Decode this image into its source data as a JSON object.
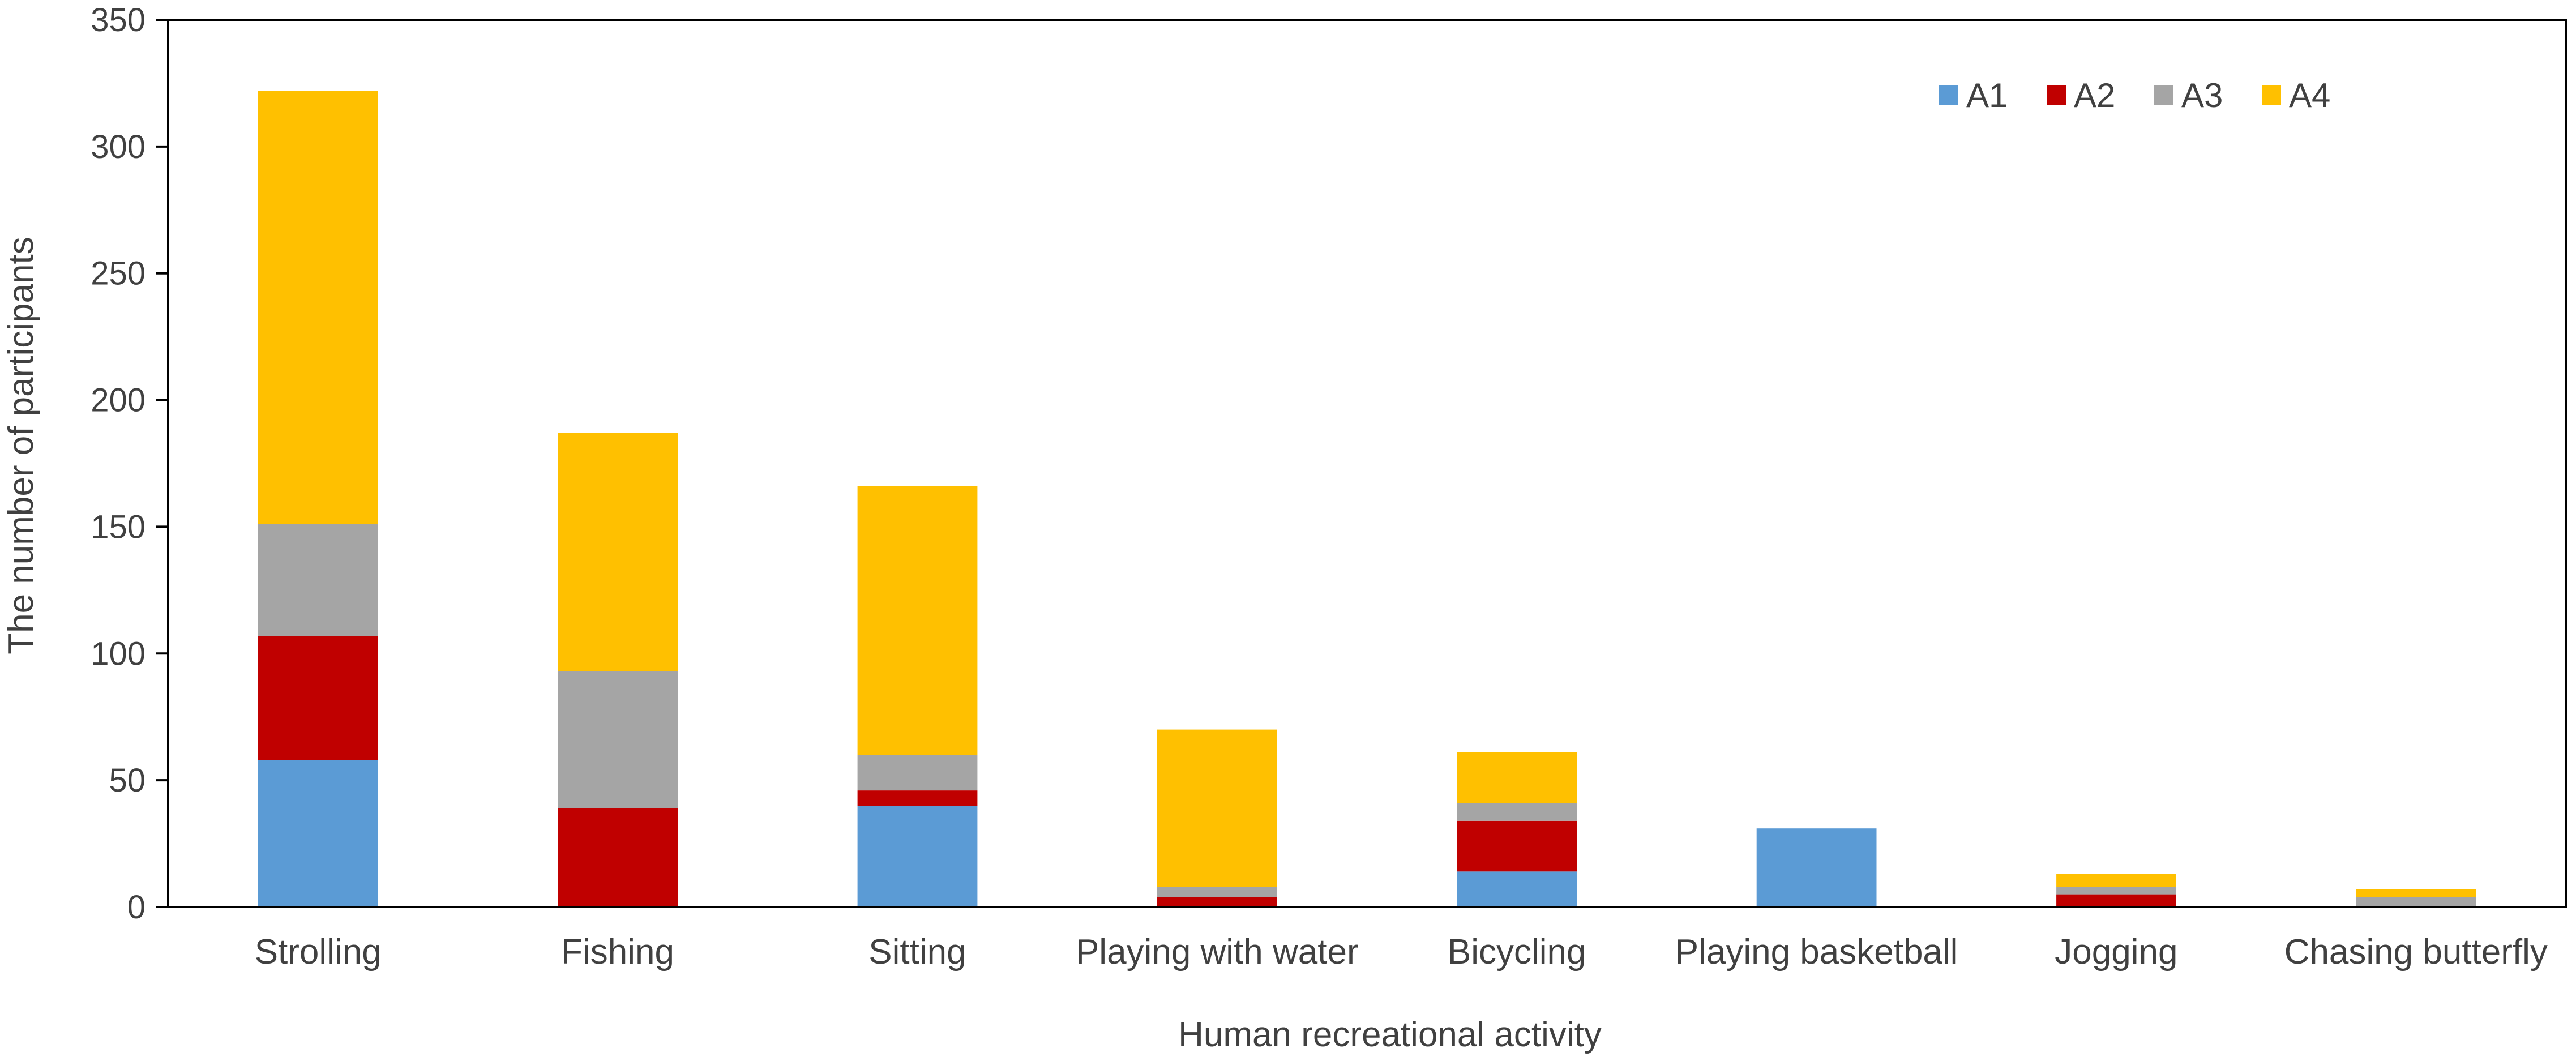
{
  "chart_data": {
    "type": "bar",
    "stacked": true,
    "title": "",
    "xlabel": "Human recreational activity",
    "ylabel": "The number of participants",
    "ylim": [
      0,
      350
    ],
    "yticks": [
      0,
      50,
      100,
      150,
      200,
      250,
      300,
      350
    ],
    "grid": false,
    "legend_position": "top-right",
    "categories": [
      "Strolling",
      "Fishing",
      "Sitting",
      "Playing with water",
      "Bicycling",
      "Playing basketball",
      "Jogging",
      "Chasing butterfly"
    ],
    "series": [
      {
        "name": "A1",
        "color": "#5B9BD5",
        "values": [
          58,
          0,
          40,
          0,
          14,
          31,
          0,
          0
        ]
      },
      {
        "name": "A2",
        "color": "#C00000",
        "values": [
          49,
          39,
          6,
          4,
          20,
          0,
          5,
          0
        ]
      },
      {
        "name": "A3",
        "color": "#A5A5A5",
        "values": [
          44,
          54,
          14,
          4,
          7,
          0,
          3,
          4
        ]
      },
      {
        "name": "A4",
        "color": "#FFC000",
        "values": [
          171,
          94,
          106,
          62,
          20,
          0,
          5,
          3
        ]
      }
    ]
  }
}
